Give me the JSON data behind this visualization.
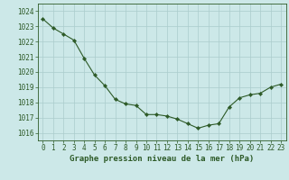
{
  "hours": [
    0,
    1,
    2,
    3,
    4,
    5,
    6,
    7,
    8,
    9,
    10,
    11,
    12,
    13,
    14,
    15,
    16,
    17,
    18,
    19,
    20,
    21,
    22,
    23
  ],
  "pressure": [
    1023.5,
    1022.9,
    1022.5,
    1022.1,
    1020.9,
    1019.8,
    1019.1,
    1018.2,
    1017.9,
    1017.8,
    1017.2,
    1017.2,
    1017.1,
    1016.9,
    1016.6,
    1016.3,
    1016.5,
    1016.6,
    1017.7,
    1018.3,
    1018.5,
    1018.6,
    1019.0,
    1019.2
  ],
  "line_color": "#2d5a27",
  "marker_color": "#2d5a27",
  "bg_color": "#cce8e8",
  "grid_color": "#aacccc",
  "xlabel": "Graphe pression niveau de la mer (hPa)",
  "ylim": [
    1015.5,
    1024.5
  ],
  "yticks": [
    1016,
    1017,
    1018,
    1019,
    1020,
    1021,
    1022,
    1023,
    1024
  ],
  "xticks": [
    0,
    1,
    2,
    3,
    4,
    5,
    6,
    7,
    8,
    9,
    10,
    11,
    12,
    13,
    14,
    15,
    16,
    17,
    18,
    19,
    20,
    21,
    22,
    23
  ],
  "tick_label_fontsize": 5.5,
  "xlabel_fontsize": 6.5,
  "text_color": "#2d5a27"
}
